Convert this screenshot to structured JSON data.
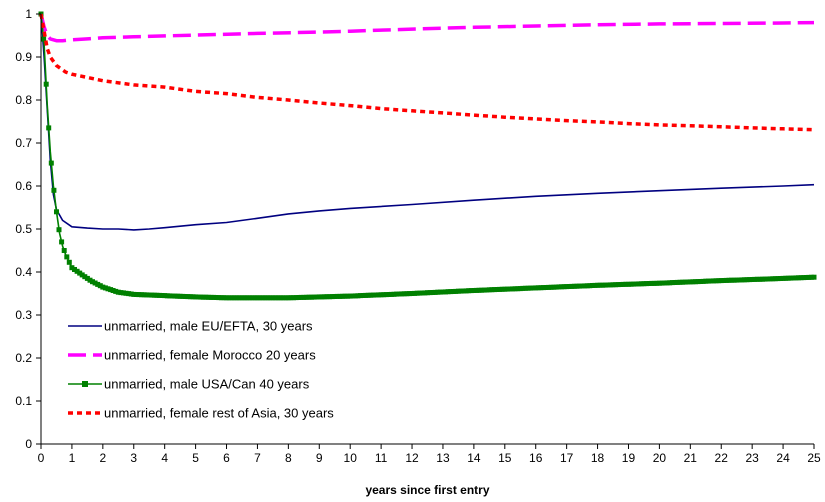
{
  "chart_data": {
    "type": "line",
    "title": "",
    "xlabel": "years since first entry",
    "ylabel": "",
    "xlim": [
      0,
      25
    ],
    "ylim": [
      0,
      1
    ],
    "x_ticks": [
      "0",
      "1",
      "2",
      "3",
      "4",
      "5",
      "6",
      "7",
      "8",
      "9",
      "10",
      "11",
      "12",
      "13",
      "14",
      "15",
      "16",
      "17",
      "18",
      "19",
      "20",
      "21",
      "22",
      "23",
      "24",
      "25"
    ],
    "y_ticks": [
      "0",
      "0.1",
      "0.2",
      "0.3",
      "0.4",
      "0.5",
      "0.6",
      "0.7",
      "0.8",
      "0.9",
      "1"
    ],
    "grid": false,
    "legend_position": "bottom-left",
    "series": [
      {
        "name": "unmarried, male EU/EFTA, 30 years",
        "color": "#000080",
        "style": "solid",
        "x": [
          0,
          0.1,
          0.2,
          0.3,
          0.4,
          0.5,
          0.7,
          1,
          1.5,
          2,
          2.5,
          3,
          3.5,
          4,
          5,
          6,
          7,
          8,
          9,
          10,
          12,
          14,
          16,
          18,
          20,
          22,
          24,
          25
        ],
        "y": [
          1,
          0.9,
          0.78,
          0.66,
          0.58,
          0.545,
          0.52,
          0.505,
          0.502,
          0.5,
          0.5,
          0.498,
          0.5,
          0.503,
          0.51,
          0.515,
          0.525,
          0.535,
          0.542,
          0.548,
          0.557,
          0.567,
          0.576,
          0.583,
          0.589,
          0.595,
          0.6,
          0.603
        ]
      },
      {
        "name": "unmarried, female Morocco 20 years",
        "color": "#ff00ff",
        "style": "dashed",
        "x": [
          0,
          0.1,
          0.2,
          0.3,
          0.5,
          0.7,
          1,
          1.5,
          2,
          3,
          4,
          5,
          7,
          9,
          10,
          12,
          14,
          16,
          18,
          20,
          22,
          24,
          25
        ],
        "y": [
          1,
          0.97,
          0.95,
          0.942,
          0.938,
          0.938,
          0.94,
          0.942,
          0.945,
          0.947,
          0.949,
          0.951,
          0.955,
          0.958,
          0.96,
          0.965,
          0.969,
          0.972,
          0.975,
          0.977,
          0.978,
          0.979,
          0.98
        ]
      },
      {
        "name": "unmarried, male USA/Can 40 years",
        "color": "#008000",
        "style": "solid-markers",
        "x": [
          0,
          0.1,
          0.2,
          0.3,
          0.4,
          0.5,
          0.6,
          0.7,
          0.8,
          1,
          1.3,
          1.6,
          2,
          2.5,
          3,
          4,
          5,
          6,
          7,
          8,
          9,
          10,
          12,
          14,
          16,
          18,
          20,
          22,
          24,
          25
        ],
        "y": [
          1,
          0.93,
          0.79,
          0.68,
          0.6,
          0.54,
          0.49,
          0.46,
          0.44,
          0.41,
          0.395,
          0.38,
          0.365,
          0.353,
          0.348,
          0.345,
          0.342,
          0.34,
          0.34,
          0.34,
          0.342,
          0.344,
          0.35,
          0.357,
          0.363,
          0.369,
          0.374,
          0.38,
          0.385,
          0.388
        ]
      },
      {
        "name": "unmarried, female rest of Asia, 30 years",
        "color": "#ff0000",
        "style": "dotted",
        "x": [
          0,
          0.1,
          0.2,
          0.3,
          0.5,
          0.8,
          1,
          2,
          3,
          4,
          5,
          6,
          7,
          8,
          9,
          10,
          11,
          12,
          13,
          14,
          15,
          16,
          17,
          18,
          19,
          20,
          21,
          22,
          23,
          24,
          25
        ],
        "y": [
          1,
          0.96,
          0.92,
          0.9,
          0.88,
          0.865,
          0.86,
          0.845,
          0.835,
          0.83,
          0.82,
          0.815,
          0.806,
          0.8,
          0.793,
          0.787,
          0.78,
          0.775,
          0.77,
          0.765,
          0.76,
          0.756,
          0.752,
          0.749,
          0.745,
          0.742,
          0.74,
          0.738,
          0.735,
          0.733,
          0.731
        ]
      }
    ]
  }
}
